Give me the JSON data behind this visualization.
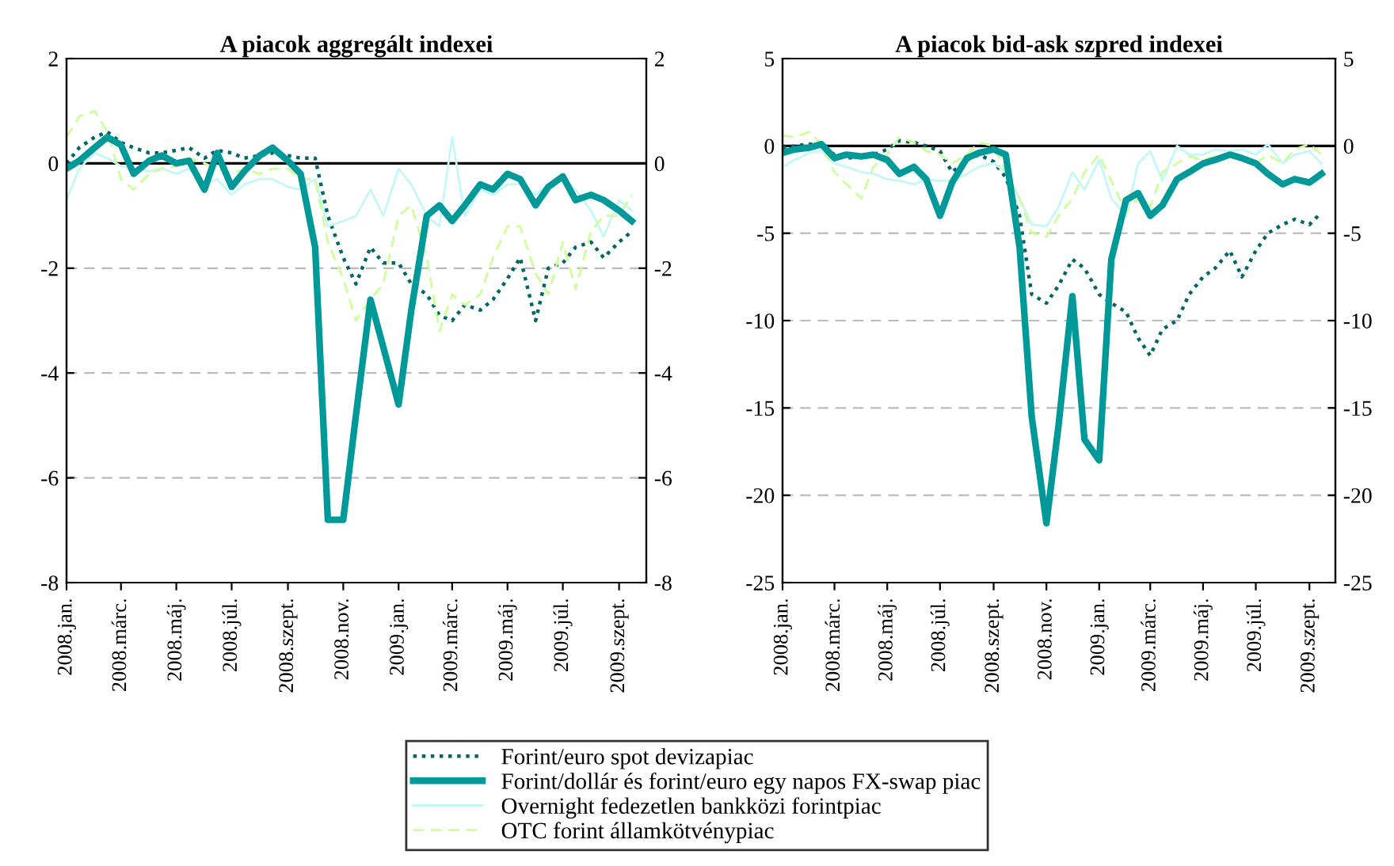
{
  "chart_data": [
    {
      "type": "line",
      "title": "A piacok aggregált indexei",
      "x": [
        "2008-01-01",
        "2008-01-15",
        "2008-02-01",
        "2008-02-15",
        "2008-03-01",
        "2008-03-15",
        "2008-04-01",
        "2008-04-15",
        "2008-05-01",
        "2008-05-15",
        "2008-06-01",
        "2008-06-15",
        "2008-07-01",
        "2008-07-15",
        "2008-08-01",
        "2008-08-15",
        "2008-09-01",
        "2008-09-15",
        "2008-10-01",
        "2008-10-15",
        "2008-11-01",
        "2008-11-15",
        "2008-12-01",
        "2008-12-15",
        "2009-01-01",
        "2009-01-15",
        "2009-02-01",
        "2009-02-15",
        "2009-03-01",
        "2009-03-15",
        "2009-04-01",
        "2009-04-15",
        "2009-05-01",
        "2009-05-15",
        "2009-06-01",
        "2009-06-15",
        "2009-07-01",
        "2009-07-15",
        "2009-08-01",
        "2009-08-15",
        "2009-09-01",
        "2009-09-15"
      ],
      "series": [
        {
          "name": "Forint/euro spot devizapiac",
          "color": "#006666",
          "line_style": "dotted",
          "values": [
            0.0,
            0.3,
            0.5,
            0.6,
            0.4,
            0.3,
            0.2,
            0.2,
            0.25,
            0.3,
            0.1,
            0.25,
            0.2,
            0.1,
            0.15,
            0.2,
            0.15,
            0.1,
            0.1,
            -1.0,
            -1.8,
            -2.3,
            -1.6,
            -1.9,
            -1.9,
            -2.3,
            -2.5,
            -2.9,
            -3.0,
            -2.7,
            -2.8,
            -2.6,
            -2.2,
            -1.8,
            -3.0,
            -2.0,
            -1.9,
            -1.6,
            -1.5,
            -1.8,
            -1.5,
            -1.3
          ]
        },
        {
          "name": "Forint/dollár és forint/euro egy napos FX-swap piac",
          "color": "#009999",
          "line_style": "solid",
          "values": [
            -0.1,
            0.05,
            0.3,
            0.5,
            0.35,
            -0.2,
            0.05,
            0.15,
            0.0,
            0.05,
            -0.5,
            0.2,
            -0.45,
            -0.15,
            0.15,
            0.3,
            0.05,
            -0.2,
            -1.6,
            -6.8,
            -6.8,
            -4.8,
            -2.6,
            -3.5,
            -4.6,
            -2.8,
            -1.0,
            -0.8,
            -1.1,
            -0.8,
            -0.4,
            -0.5,
            -0.2,
            -0.3,
            -0.8,
            -0.45,
            -0.25,
            -0.7,
            -0.6,
            -0.7,
            -0.9,
            -1.1
          ]
        },
        {
          "name": "Overnight fedezetlen bankközi forintpiac",
          "color": "#c4f7f7",
          "line_style": "solid",
          "values": [
            -0.7,
            -0.1,
            0.2,
            0.1,
            -0.05,
            -0.1,
            -0.15,
            -0.1,
            -0.2,
            -0.1,
            -0.4,
            -0.3,
            -0.6,
            -0.4,
            -0.3,
            -0.3,
            -0.45,
            -0.5,
            -0.3,
            -1.2,
            -1.1,
            -1.0,
            -0.5,
            -1.0,
            -0.1,
            -0.4,
            -1.0,
            -1.2,
            0.5,
            -1.0,
            -0.5,
            -0.6,
            -0.4,
            -0.4,
            -0.6,
            -0.4,
            -0.3,
            -0.5,
            -0.9,
            -1.4,
            -0.7,
            -0.9
          ]
        },
        {
          "name": "OTC forint államkötvénypiac",
          "color": "#ccff99",
          "line_style": "dashed",
          "values": [
            0.5,
            0.9,
            1.0,
            0.6,
            -0.3,
            -0.5,
            -0.2,
            -0.1,
            -0.05,
            0.1,
            0.0,
            -0.1,
            -0.2,
            -0.1,
            -0.2,
            -0.1,
            -0.1,
            -0.3,
            -0.3,
            -1.5,
            -2.2,
            -3.0,
            -2.6,
            -2.3,
            -1.0,
            -0.8,
            -1.8,
            -3.2,
            -2.5,
            -2.7,
            -2.5,
            -1.8,
            -1.2,
            -1.2,
            -2.1,
            -2.5,
            -1.5,
            -2.4,
            -1.3,
            -1.0,
            -1.0,
            -0.6
          ]
        }
      ],
      "xlim": [
        "2008-01-01",
        "2009-10-01"
      ],
      "xticks": [
        {
          "value": "2008-01-01",
          "label": "2008.jan."
        },
        {
          "value": "2008-03-01",
          "label": "2008.márc."
        },
        {
          "value": "2008-05-01",
          "label": "2008.máj."
        },
        {
          "value": "2008-07-01",
          "label": "2008.júl."
        },
        {
          "value": "2008-09-01",
          "label": "2008.szept."
        },
        {
          "value": "2008-11-01",
          "label": "2008.nov."
        },
        {
          "value": "2009-01-01",
          "label": "2009.jan."
        },
        {
          "value": "2009-03-01",
          "label": "2009.márc."
        },
        {
          "value": "2009-05-01",
          "label": "2009.máj."
        },
        {
          "value": "2009-07-01",
          "label": "2009.júl."
        },
        {
          "value": "2009-09-01",
          "label": "2009.szept."
        }
      ],
      "ylim": [
        -8,
        2
      ],
      "yticks": [
        -8,
        -6,
        -4,
        -2,
        0,
        2
      ],
      "y2lim": [
        -8,
        2
      ],
      "y2ticks": [
        -8,
        -6,
        -4,
        -2,
        0,
        2
      ],
      "ref_lines": [
        {
          "axis": "y",
          "value": 0,
          "color": "#000000"
        }
      ],
      "grid": "y",
      "legend": "bottom"
    },
    {
      "type": "line",
      "title": "A piacok bid-ask szpred indexei",
      "x": [
        "2008-01-01",
        "2008-01-15",
        "2008-02-01",
        "2008-02-15",
        "2008-03-01",
        "2008-03-15",
        "2008-04-01",
        "2008-04-15",
        "2008-05-01",
        "2008-05-15",
        "2008-06-01",
        "2008-06-15",
        "2008-07-01",
        "2008-07-15",
        "2008-08-01",
        "2008-08-15",
        "2008-09-01",
        "2008-09-15",
        "2008-10-01",
        "2008-10-15",
        "2008-11-01",
        "2008-11-15",
        "2008-12-01",
        "2008-12-15",
        "2009-01-01",
        "2009-01-15",
        "2009-02-01",
        "2009-02-15",
        "2009-03-01",
        "2009-03-15",
        "2009-04-01",
        "2009-04-15",
        "2009-05-01",
        "2009-05-15",
        "2009-06-01",
        "2009-06-15",
        "2009-07-01",
        "2009-07-15",
        "2009-08-01",
        "2009-08-15",
        "2009-09-01",
        "2009-09-15"
      ],
      "series": [
        {
          "name": "Forint/euro spot devizapiac",
          "color": "#006666",
          "line_style": "dotted",
          "values": [
            -0.1,
            0.0,
            0.1,
            0.1,
            -0.5,
            -0.7,
            -0.6,
            -0.5,
            -0.2,
            0.3,
            0.2,
            0.0,
            -0.3,
            -1.5,
            -0.8,
            -0.5,
            -0.9,
            -1.8,
            -4.0,
            -8.5,
            -9.0,
            -8.0,
            -6.5,
            -7.0,
            -8.5,
            -9.0,
            -9.5,
            -11.0,
            -12.0,
            -10.5,
            -10.0,
            -8.5,
            -7.5,
            -7.0,
            -6.0,
            -7.5,
            -6.0,
            -5.0,
            -4.5,
            -4.2,
            -4.5,
            -3.8
          ]
        },
        {
          "name": "Forint/dollár és forint/euro egy napos FX-swap piac",
          "color": "#009999",
          "line_style": "solid",
          "values": [
            -0.4,
            -0.2,
            -0.1,
            0.1,
            -0.7,
            -0.5,
            -0.6,
            -0.5,
            -0.8,
            -1.6,
            -1.2,
            -1.9,
            -4.0,
            -2.1,
            -0.7,
            -0.4,
            -0.2,
            -0.5,
            -5.8,
            -15.5,
            -21.6,
            -16.0,
            -8.6,
            -16.8,
            -18.0,
            -6.5,
            -3.1,
            -2.7,
            -4.0,
            -3.4,
            -1.9,
            -1.5,
            -1.0,
            -0.8,
            -0.5,
            -0.7,
            -1.0,
            -1.6,
            -2.2,
            -1.9,
            -2.1,
            -1.6
          ]
        },
        {
          "name": "Overnight fedezetlen bankközi forintpiac",
          "color": "#c4f7f7",
          "line_style": "solid",
          "values": [
            -1.2,
            -0.8,
            -0.4,
            -0.3,
            -1.0,
            -1.2,
            -1.5,
            -1.6,
            -1.9,
            -2.0,
            -2.2,
            -1.9,
            -2.0,
            -2.0,
            -1.6,
            -1.2,
            -1.0,
            -1.5,
            -3.0,
            -4.5,
            -4.6,
            -3.5,
            -1.5,
            -2.5,
            -0.8,
            -3.0,
            -4.0,
            -1.0,
            -0.3,
            -2.0,
            0.0,
            -0.5,
            -0.5,
            -0.2,
            -0.3,
            -0.2,
            -0.5,
            0.1,
            -1.0,
            -0.5,
            -0.3,
            -1.0
          ]
        },
        {
          "name": "OTC forint államkötvénypiac",
          "color": "#ccff99",
          "line_style": "dashed",
          "values": [
            0.6,
            0.5,
            0.8,
            0.1,
            -1.5,
            -2.2,
            -3.0,
            -1.2,
            -0.5,
            0.5,
            0.2,
            -0.3,
            -0.5,
            -1.0,
            -0.5,
            0.2,
            0.0,
            -1.5,
            -3.0,
            -5.0,
            -5.2,
            -4.0,
            -3.0,
            -1.5,
            -0.5,
            -2.0,
            -3.8,
            -3.0,
            -3.5,
            -1.5,
            -1.0,
            -0.6,
            -0.8,
            -0.6,
            -0.5,
            -0.8,
            -1.0,
            -0.5,
            -1.0,
            -0.2,
            0.1,
            -0.5
          ]
        }
      ],
      "xlim": [
        "2008-01-01",
        "2009-10-01"
      ],
      "xticks": [
        {
          "value": "2008-01-01",
          "label": "2008.jan."
        },
        {
          "value": "2008-03-01",
          "label": "2008.márc."
        },
        {
          "value": "2008-05-01",
          "label": "2008.máj."
        },
        {
          "value": "2008-07-01",
          "label": "2008.júl."
        },
        {
          "value": "2008-09-01",
          "label": "2008.szept."
        },
        {
          "value": "2008-11-01",
          "label": "2008.nov."
        },
        {
          "value": "2009-01-01",
          "label": "2009.jan."
        },
        {
          "value": "2009-03-01",
          "label": "2009.márc."
        },
        {
          "value": "2009-05-01",
          "label": "2009.máj."
        },
        {
          "value": "2009-07-01",
          "label": "2009.júl."
        },
        {
          "value": "2009-09-01",
          "label": "2009.szept."
        }
      ],
      "ylim": [
        -25,
        5
      ],
      "yticks": [
        -25,
        -20,
        -15,
        -10,
        -5,
        0,
        5
      ],
      "y2lim": [
        -25,
        5
      ],
      "y2ticks": [
        -25,
        -20,
        -15,
        -10,
        -5,
        0,
        5
      ],
      "ref_lines": [
        {
          "axis": "y",
          "value": 0,
          "color": "#000000"
        }
      ],
      "grid": "y"
    }
  ]
}
